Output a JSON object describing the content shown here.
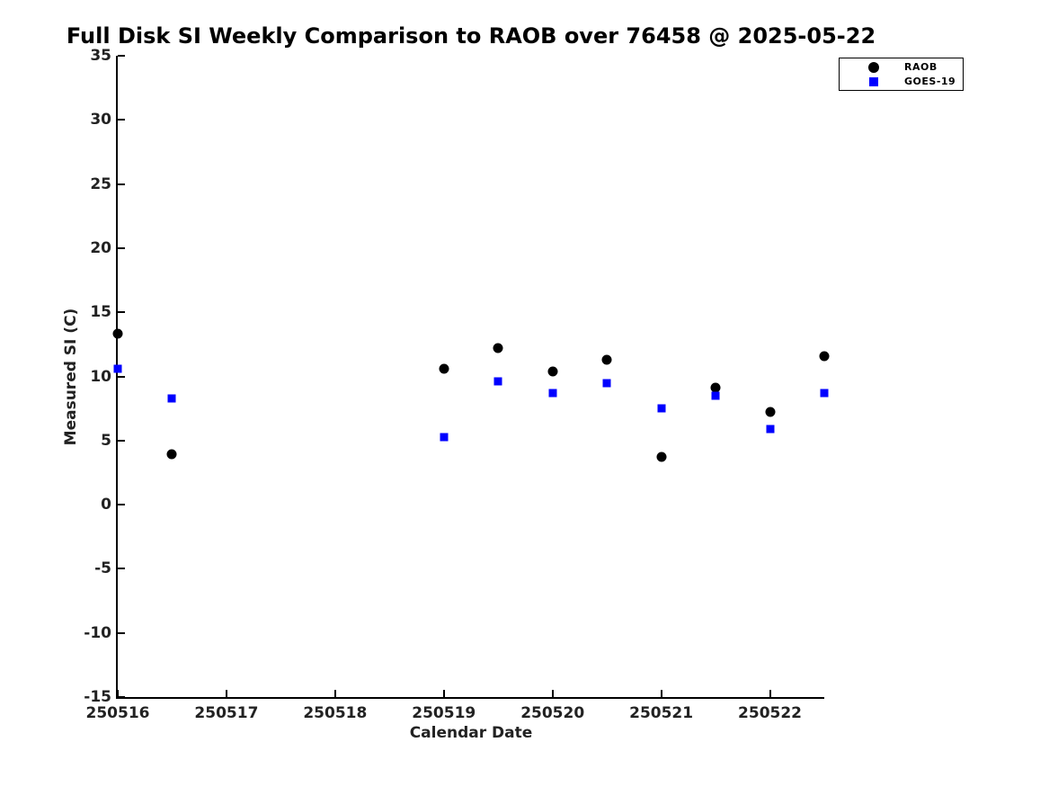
{
  "chart_data": {
    "type": "scatter",
    "title": "Full Disk SI Weekly Comparison to RAOB over 76458 @ 2025-05-22",
    "xlabel": "Calendar Date",
    "ylabel": "Measured SI (C)",
    "xlim": [
      250516,
      250522.5
    ],
    "ylim": [
      -15,
      35
    ],
    "x_ticks": [
      250516,
      250517,
      250518,
      250519,
      250520,
      250521,
      250522
    ],
    "y_ticks": [
      35,
      30,
      25,
      20,
      15,
      10,
      5,
      0,
      -5,
      -10,
      -15
    ],
    "grid": false,
    "legend_position": "top-right-outside",
    "x": [
      250516,
      250516.5,
      250519,
      250519.5,
      250520,
      250520.5,
      250521,
      250521.5,
      250522,
      250522.5
    ],
    "series": [
      {
        "name": "RAOB",
        "marker": "circle",
        "color": "#000000",
        "values": [
          13.3,
          3.9,
          10.6,
          12.2,
          10.4,
          11.3,
          3.7,
          9.1,
          7.2,
          11.6
        ]
      },
      {
        "name": "GOES-19",
        "marker": "square",
        "color": "#0000ff",
        "values": [
          10.6,
          8.3,
          5.3,
          9.6,
          8.7,
          9.5,
          7.5,
          8.5,
          5.9,
          8.7
        ]
      }
    ]
  }
}
